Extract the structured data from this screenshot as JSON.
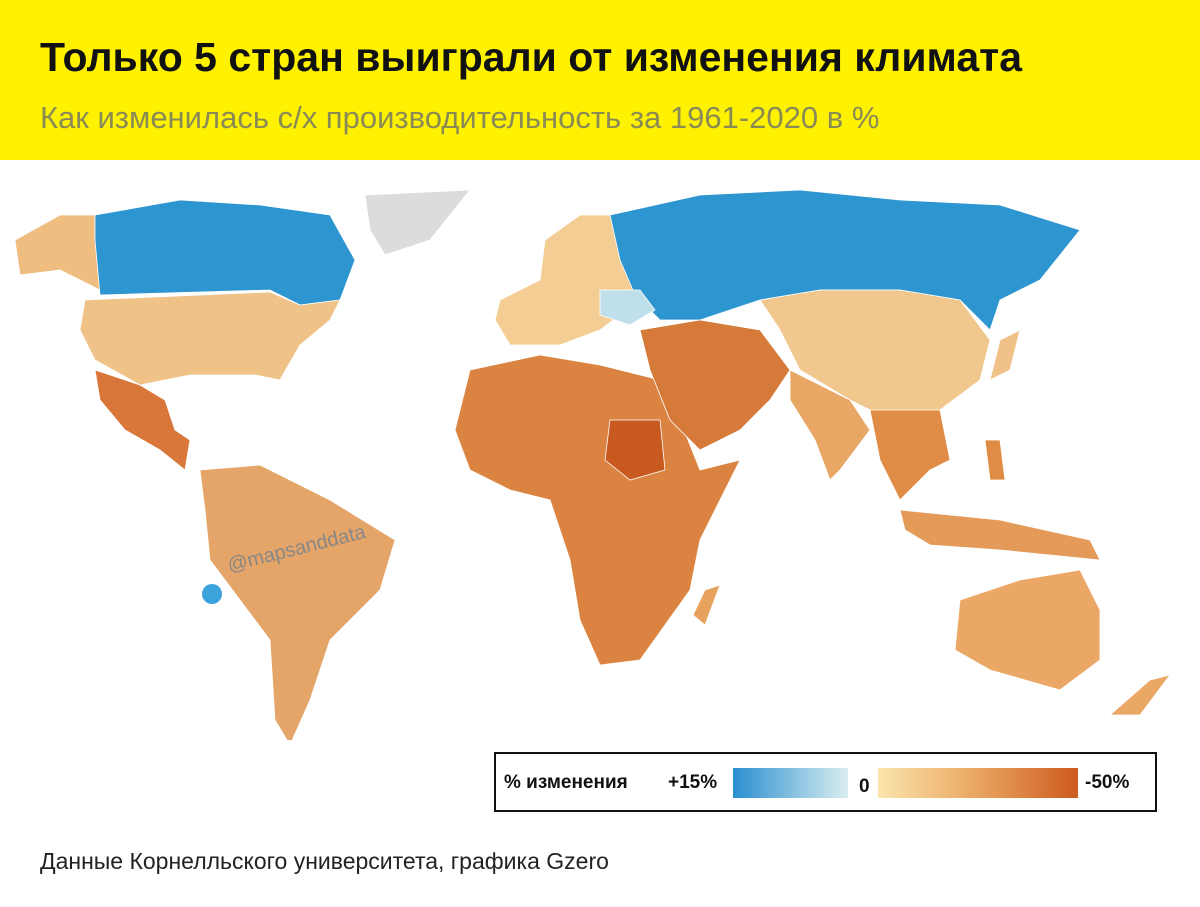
{
  "header": {
    "title": "Только 5 стран выиграли от изменения климата",
    "subtitle": "Как изменилась с/х производительность за 1961-2020 в %"
  },
  "legend": {
    "title": "% изменения",
    "ticks": [
      {
        "value": 15,
        "label": "+15%"
      },
      0,
      {
        "value": -50,
        "label": "-50%"
      }
    ]
  },
  "watermark": "@mapsanddata",
  "footer": "Данные Корнелльского университета, графика Gzero"
}
